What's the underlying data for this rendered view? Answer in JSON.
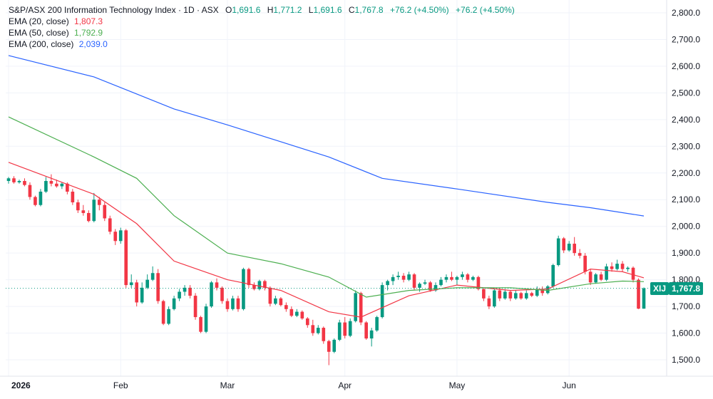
{
  "header": {
    "symbol_title": "S&P/ASX 200 Information Technology Index",
    "interval": "1D",
    "exchange": "ASX",
    "open_key": "O",
    "open": "1,691.6",
    "high_key": "H",
    "high": "1,771.2",
    "low_key": "L",
    "low": "1,691.6",
    "close_key": "C",
    "close": "1,767.8",
    "change": "+76.2 (+4.50%)",
    "change_repeat": "+76.2 (+4.50%)"
  },
  "indicators": [
    {
      "label": "EMA (20, close)",
      "value": "1,807.3",
      "color": "#f23645"
    },
    {
      "label": "EMA (50, close)",
      "value": "1,792.9",
      "color": "#4caf50"
    },
    {
      "label": "EMA (200, close)",
      "value": "2,039.0",
      "color": "#2962ff"
    }
  ],
  "price_badge": {
    "symbol": "XIJ",
    "value": "1,767.8",
    "color": "#089981"
  },
  "colors": {
    "up": "#089981",
    "down": "#f23645",
    "grid": "#f0f3fa",
    "axis_text": "#131722"
  },
  "chart_data": {
    "type": "candlestick",
    "title": "S&P/ASX 200 Information Technology Index · 1D · ASX",
    "y_ticks": [
      "2,800.0",
      "2,700.0",
      "2,600.0",
      "2,500.0",
      "2,400.0",
      "2,300.0",
      "2,200.0",
      "2,100.0",
      "2,000.0",
      "1,900.0",
      "1,800.0",
      "1,700.0",
      "1,600.0",
      "1,500.0"
    ],
    "ylim": [
      1470,
      2840
    ],
    "x_labels": [
      {
        "date": "2026-01-02",
        "label": "2026"
      },
      {
        "date": "2026-02-02",
        "label": "Feb"
      },
      {
        "date": "2026-03-02",
        "label": "Mar"
      },
      {
        "date": "2026-04-01",
        "label": "Apr"
      },
      {
        "date": "2026-05-01",
        "label": "May"
      },
      {
        "date": "2026-06-01",
        "label": "Jun"
      }
    ],
    "last_close": 1767.8,
    "candles": [
      {
        "date": "2026-01-02",
        "o": 2170,
        "h": 2185,
        "l": 2160,
        "c": 2180
      },
      {
        "date": "2026-01-05",
        "o": 2180,
        "h": 2188,
        "l": 2160,
        "c": 2165
      },
      {
        "date": "2026-01-06",
        "o": 2165,
        "h": 2175,
        "l": 2160,
        "c": 2170
      },
      {
        "date": "2026-01-07",
        "o": 2170,
        "h": 2180,
        "l": 2150,
        "c": 2155
      },
      {
        "date": "2026-01-08",
        "o": 2155,
        "h": 2165,
        "l": 2100,
        "c": 2110
      },
      {
        "date": "2026-01-09",
        "o": 2110,
        "h": 2115,
        "l": 2075,
        "c": 2080
      },
      {
        "date": "2026-01-12",
        "o": 2080,
        "h": 2140,
        "l": 2075,
        "c": 2130
      },
      {
        "date": "2026-01-13",
        "o": 2130,
        "h": 2185,
        "l": 2125,
        "c": 2170
      },
      {
        "date": "2026-01-14",
        "o": 2170,
        "h": 2195,
        "l": 2150,
        "c": 2160
      },
      {
        "date": "2026-01-15",
        "o": 2160,
        "h": 2175,
        "l": 2145,
        "c": 2150
      },
      {
        "date": "2026-01-16",
        "o": 2150,
        "h": 2165,
        "l": 2140,
        "c": 2160
      },
      {
        "date": "2026-01-19",
        "o": 2160,
        "h": 2165,
        "l": 2120,
        "c": 2130
      },
      {
        "date": "2026-01-20",
        "o": 2130,
        "h": 2140,
        "l": 2080,
        "c": 2090
      },
      {
        "date": "2026-01-21",
        "o": 2090,
        "h": 2100,
        "l": 2050,
        "c": 2060
      },
      {
        "date": "2026-01-22",
        "o": 2060,
        "h": 2080,
        "l": 2040,
        "c": 2050
      },
      {
        "date": "2026-01-23",
        "o": 2050,
        "h": 2060,
        "l": 2015,
        "c": 2020
      },
      {
        "date": "2026-01-26",
        "o": 2020,
        "h": 2125,
        "l": 2015,
        "c": 2100
      },
      {
        "date": "2026-01-27",
        "o": 2100,
        "h": 2110,
        "l": 2060,
        "c": 2080
      },
      {
        "date": "2026-01-28",
        "o": 2080,
        "h": 2090,
        "l": 2020,
        "c": 2030
      },
      {
        "date": "2026-01-29",
        "o": 2030,
        "h": 2040,
        "l": 1970,
        "c": 1980
      },
      {
        "date": "2026-01-30",
        "o": 1980,
        "h": 1990,
        "l": 1930,
        "c": 1945
      },
      {
        "date": "2026-02-02",
        "o": 1945,
        "h": 1995,
        "l": 1935,
        "c": 1985
      },
      {
        "date": "2026-02-03",
        "o": 1985,
        "h": 1990,
        "l": 1770,
        "c": 1780
      },
      {
        "date": "2026-02-04",
        "o": 1780,
        "h": 1820,
        "l": 1770,
        "c": 1790
      },
      {
        "date": "2026-02-05",
        "o": 1790,
        "h": 1800,
        "l": 1700,
        "c": 1715
      },
      {
        "date": "2026-02-06",
        "o": 1715,
        "h": 1790,
        "l": 1710,
        "c": 1770
      },
      {
        "date": "2026-02-09",
        "o": 1770,
        "h": 1820,
        "l": 1765,
        "c": 1800
      },
      {
        "date": "2026-02-10",
        "o": 1800,
        "h": 1850,
        "l": 1795,
        "c": 1825
      },
      {
        "date": "2026-02-11",
        "o": 1825,
        "h": 1840,
        "l": 1710,
        "c": 1720
      },
      {
        "date": "2026-02-12",
        "o": 1720,
        "h": 1725,
        "l": 1630,
        "c": 1635
      },
      {
        "date": "2026-02-13",
        "o": 1635,
        "h": 1700,
        "l": 1630,
        "c": 1690
      },
      {
        "date": "2026-02-16",
        "o": 1690,
        "h": 1740,
        "l": 1685,
        "c": 1730
      },
      {
        "date": "2026-02-17",
        "o": 1730,
        "h": 1765,
        "l": 1720,
        "c": 1755
      },
      {
        "date": "2026-02-18",
        "o": 1755,
        "h": 1780,
        "l": 1740,
        "c": 1770
      },
      {
        "date": "2026-02-19",
        "o": 1770,
        "h": 1780,
        "l": 1730,
        "c": 1740
      },
      {
        "date": "2026-02-20",
        "o": 1740,
        "h": 1750,
        "l": 1650,
        "c": 1660
      },
      {
        "date": "2026-02-23",
        "o": 1660,
        "h": 1665,
        "l": 1600,
        "c": 1605
      },
      {
        "date": "2026-02-24",
        "o": 1605,
        "h": 1710,
        "l": 1600,
        "c": 1700
      },
      {
        "date": "2026-02-25",
        "o": 1700,
        "h": 1795,
        "l": 1695,
        "c": 1790
      },
      {
        "date": "2026-02-26",
        "o": 1790,
        "h": 1805,
        "l": 1760,
        "c": 1770
      },
      {
        "date": "2026-02-27",
        "o": 1770,
        "h": 1775,
        "l": 1710,
        "c": 1720
      },
      {
        "date": "2026-03-02",
        "o": 1720,
        "h": 1730,
        "l": 1680,
        "c": 1690
      },
      {
        "date": "2026-03-03",
        "o": 1690,
        "h": 1740,
        "l": 1685,
        "c": 1730
      },
      {
        "date": "2026-03-04",
        "o": 1730,
        "h": 1740,
        "l": 1680,
        "c": 1690
      },
      {
        "date": "2026-03-05",
        "o": 1690,
        "h": 1845,
        "l": 1685,
        "c": 1840
      },
      {
        "date": "2026-03-06",
        "o": 1840,
        "h": 1845,
        "l": 1770,
        "c": 1780
      },
      {
        "date": "2026-03-09",
        "o": 1780,
        "h": 1790,
        "l": 1760,
        "c": 1765
      },
      {
        "date": "2026-03-10",
        "o": 1765,
        "h": 1800,
        "l": 1760,
        "c": 1795
      },
      {
        "date": "2026-03-11",
        "o": 1795,
        "h": 1800,
        "l": 1760,
        "c": 1770
      },
      {
        "date": "2026-03-12",
        "o": 1770,
        "h": 1775,
        "l": 1700,
        "c": 1710
      },
      {
        "date": "2026-03-13",
        "o": 1710,
        "h": 1740,
        "l": 1705,
        "c": 1730
      },
      {
        "date": "2026-03-16",
        "o": 1730,
        "h": 1735,
        "l": 1700,
        "c": 1705
      },
      {
        "date": "2026-03-17",
        "o": 1705,
        "h": 1715,
        "l": 1680,
        "c": 1690
      },
      {
        "date": "2026-03-18",
        "o": 1690,
        "h": 1700,
        "l": 1660,
        "c": 1665
      },
      {
        "date": "2026-03-19",
        "o": 1665,
        "h": 1690,
        "l": 1660,
        "c": 1680
      },
      {
        "date": "2026-03-20",
        "o": 1680,
        "h": 1685,
        "l": 1650,
        "c": 1655
      },
      {
        "date": "2026-03-23",
        "o": 1655,
        "h": 1660,
        "l": 1620,
        "c": 1630
      },
      {
        "date": "2026-03-24",
        "o": 1630,
        "h": 1650,
        "l": 1590,
        "c": 1600
      },
      {
        "date": "2026-03-25",
        "o": 1600,
        "h": 1630,
        "l": 1595,
        "c": 1620
      },
      {
        "date": "2026-03-26",
        "o": 1620,
        "h": 1625,
        "l": 1560,
        "c": 1570
      },
      {
        "date": "2026-03-27",
        "o": 1570,
        "h": 1575,
        "l": 1480,
        "c": 1530
      },
      {
        "date": "2026-03-30",
        "o": 1530,
        "h": 1580,
        "l": 1525,
        "c": 1575
      },
      {
        "date": "2026-03-31",
        "o": 1575,
        "h": 1650,
        "l": 1570,
        "c": 1640
      },
      {
        "date": "2026-04-01",
        "o": 1640,
        "h": 1660,
        "l": 1580,
        "c": 1590
      },
      {
        "date": "2026-04-02",
        "o": 1590,
        "h": 1655,
        "l": 1585,
        "c": 1645
      },
      {
        "date": "2026-04-06",
        "o": 1645,
        "h": 1760,
        "l": 1640,
        "c": 1750
      },
      {
        "date": "2026-04-07",
        "o": 1750,
        "h": 1755,
        "l": 1630,
        "c": 1640
      },
      {
        "date": "2026-04-08",
        "o": 1640,
        "h": 1645,
        "l": 1575,
        "c": 1580
      },
      {
        "date": "2026-04-09",
        "o": 1580,
        "h": 1620,
        "l": 1550,
        "c": 1610
      },
      {
        "date": "2026-04-10",
        "o": 1610,
        "h": 1665,
        "l": 1605,
        "c": 1660
      },
      {
        "date": "2026-04-13",
        "o": 1660,
        "h": 1790,
        "l": 1655,
        "c": 1780
      },
      {
        "date": "2026-04-14",
        "o": 1780,
        "h": 1800,
        "l": 1760,
        "c": 1795
      },
      {
        "date": "2026-04-15",
        "o": 1795,
        "h": 1820,
        "l": 1780,
        "c": 1810
      },
      {
        "date": "2026-04-16",
        "o": 1810,
        "h": 1830,
        "l": 1800,
        "c": 1815
      },
      {
        "date": "2026-04-17",
        "o": 1815,
        "h": 1825,
        "l": 1790,
        "c": 1800
      },
      {
        "date": "2026-04-20",
        "o": 1800,
        "h": 1830,
        "l": 1795,
        "c": 1820
      },
      {
        "date": "2026-04-21",
        "o": 1820,
        "h": 1825,
        "l": 1760,
        "c": 1770
      },
      {
        "date": "2026-04-22",
        "o": 1770,
        "h": 1790,
        "l": 1755,
        "c": 1785
      },
      {
        "date": "2026-04-23",
        "o": 1785,
        "h": 1800,
        "l": 1780,
        "c": 1790
      },
      {
        "date": "2026-04-24",
        "o": 1790,
        "h": 1795,
        "l": 1755,
        "c": 1760
      },
      {
        "date": "2026-04-27",
        "o": 1760,
        "h": 1790,
        "l": 1755,
        "c": 1780
      },
      {
        "date": "2026-04-28",
        "o": 1780,
        "h": 1810,
        "l": 1775,
        "c": 1800
      },
      {
        "date": "2026-04-29",
        "o": 1800,
        "h": 1820,
        "l": 1790,
        "c": 1810
      },
      {
        "date": "2026-04-30",
        "o": 1810,
        "h": 1830,
        "l": 1795,
        "c": 1800
      },
      {
        "date": "2026-05-01",
        "o": 1800,
        "h": 1815,
        "l": 1780,
        "c": 1810
      },
      {
        "date": "2026-05-04",
        "o": 1810,
        "h": 1830,
        "l": 1800,
        "c": 1820
      },
      {
        "date": "2026-05-05",
        "o": 1820,
        "h": 1825,
        "l": 1790,
        "c": 1800
      },
      {
        "date": "2026-05-06",
        "o": 1800,
        "h": 1815,
        "l": 1795,
        "c": 1810
      },
      {
        "date": "2026-05-07",
        "o": 1810,
        "h": 1815,
        "l": 1760,
        "c": 1765
      },
      {
        "date": "2026-05-08",
        "o": 1765,
        "h": 1770,
        "l": 1720,
        "c": 1730
      },
      {
        "date": "2026-05-11",
        "o": 1730,
        "h": 1740,
        "l": 1690,
        "c": 1700
      },
      {
        "date": "2026-05-12",
        "o": 1700,
        "h": 1765,
        "l": 1695,
        "c": 1760
      },
      {
        "date": "2026-05-13",
        "o": 1760,
        "h": 1770,
        "l": 1720,
        "c": 1730
      },
      {
        "date": "2026-05-14",
        "o": 1730,
        "h": 1765,
        "l": 1725,
        "c": 1755
      },
      {
        "date": "2026-05-15",
        "o": 1755,
        "h": 1760,
        "l": 1720,
        "c": 1730
      },
      {
        "date": "2026-05-18",
        "o": 1730,
        "h": 1760,
        "l": 1725,
        "c": 1750
      },
      {
        "date": "2026-05-19",
        "o": 1750,
        "h": 1755,
        "l": 1725,
        "c": 1730
      },
      {
        "date": "2026-05-20",
        "o": 1730,
        "h": 1760,
        "l": 1725,
        "c": 1750
      },
      {
        "date": "2026-05-21",
        "o": 1750,
        "h": 1755,
        "l": 1735,
        "c": 1740
      },
      {
        "date": "2026-05-22",
        "o": 1740,
        "h": 1775,
        "l": 1735,
        "c": 1765
      },
      {
        "date": "2026-05-25",
        "o": 1765,
        "h": 1775,
        "l": 1740,
        "c": 1750
      },
      {
        "date": "2026-05-26",
        "o": 1750,
        "h": 1780,
        "l": 1745,
        "c": 1775
      },
      {
        "date": "2026-05-27",
        "o": 1775,
        "h": 1860,
        "l": 1770,
        "c": 1855
      },
      {
        "date": "2026-05-28",
        "o": 1855,
        "h": 1965,
        "l": 1850,
        "c": 1955
      },
      {
        "date": "2026-05-29",
        "o": 1955,
        "h": 1960,
        "l": 1900,
        "c": 1910
      },
      {
        "date": "2026-06-01",
        "o": 1910,
        "h": 1945,
        "l": 1905,
        "c": 1935
      },
      {
        "date": "2026-06-02",
        "o": 1935,
        "h": 1960,
        "l": 1890,
        "c": 1900
      },
      {
        "date": "2026-06-03",
        "o": 1900,
        "h": 1915,
        "l": 1880,
        "c": 1890
      },
      {
        "date": "2026-06-04",
        "o": 1890,
        "h": 1900,
        "l": 1820,
        "c": 1830
      },
      {
        "date": "2026-06-05",
        "o": 1830,
        "h": 1840,
        "l": 1780,
        "c": 1790
      },
      {
        "date": "2026-06-08",
        "o": 1790,
        "h": 1825,
        "l": 1785,
        "c": 1820
      },
      {
        "date": "2026-06-09",
        "o": 1820,
        "h": 1830,
        "l": 1795,
        "c": 1800
      },
      {
        "date": "2026-06-10",
        "o": 1800,
        "h": 1860,
        "l": 1795,
        "c": 1850
      },
      {
        "date": "2026-06-11",
        "o": 1850,
        "h": 1865,
        "l": 1830,
        "c": 1840
      },
      {
        "date": "2026-06-12",
        "o": 1840,
        "h": 1875,
        "l": 1835,
        "c": 1860
      },
      {
        "date": "2026-06-15",
        "o": 1860,
        "h": 1870,
        "l": 1830,
        "c": 1840
      },
      {
        "date": "2026-06-16",
        "o": 1840,
        "h": 1850,
        "l": 1830,
        "c": 1845
      },
      {
        "date": "2026-06-17",
        "o": 1845,
        "h": 1850,
        "l": 1790,
        "c": 1800
      },
      {
        "date": "2026-06-18",
        "o": 1800,
        "h": 1805,
        "l": 1690,
        "c": 1691.6
      },
      {
        "date": "2026-06-19",
        "o": 1691.6,
        "h": 1771.2,
        "l": 1691.6,
        "c": 1767.8
      }
    ],
    "series": [
      {
        "name": "EMA (20, close)",
        "color": "#f23645",
        "points": [
          [
            "2026-01-02",
            2240
          ],
          [
            "2026-01-26",
            2120
          ],
          [
            "2026-02-05",
            2010
          ],
          [
            "2026-02-16",
            1870
          ],
          [
            "2026-03-02",
            1800
          ],
          [
            "2026-03-16",
            1760
          ],
          [
            "2026-03-27",
            1680
          ],
          [
            "2026-04-07",
            1660
          ],
          [
            "2026-04-20",
            1740
          ],
          [
            "2026-05-01",
            1780
          ],
          [
            "2026-05-15",
            1760
          ],
          [
            "2026-05-26",
            1765
          ],
          [
            "2026-06-05",
            1840
          ],
          [
            "2026-06-15",
            1830
          ],
          [
            "2026-06-19",
            1807.3
          ]
        ]
      },
      {
        "name": "EMA (50, close)",
        "color": "#4caf50",
        "points": [
          [
            "2026-01-02",
            2410
          ],
          [
            "2026-01-26",
            2260
          ],
          [
            "2026-02-05",
            2180
          ],
          [
            "2026-02-16",
            2040
          ],
          [
            "2026-03-02",
            1900
          ],
          [
            "2026-03-16",
            1860
          ],
          [
            "2026-03-27",
            1810
          ],
          [
            "2026-04-08",
            1735
          ],
          [
            "2026-04-20",
            1760
          ],
          [
            "2026-05-01",
            1770
          ],
          [
            "2026-05-15",
            1770
          ],
          [
            "2026-05-26",
            1760
          ],
          [
            "2026-06-05",
            1785
          ],
          [
            "2026-06-15",
            1795
          ],
          [
            "2026-06-19",
            1792.9
          ]
        ]
      },
      {
        "name": "EMA (200, close)",
        "color": "#2962ff",
        "points": [
          [
            "2026-01-02",
            2640
          ],
          [
            "2026-01-26",
            2560
          ],
          [
            "2026-02-16",
            2440
          ],
          [
            "2026-03-02",
            2380
          ],
          [
            "2026-03-27",
            2260
          ],
          [
            "2026-04-13",
            2180
          ],
          [
            "2026-05-01",
            2140
          ],
          [
            "2026-05-26",
            2090
          ],
          [
            "2026-06-05",
            2070
          ],
          [
            "2026-06-19",
            2039.0
          ]
        ]
      }
    ]
  }
}
